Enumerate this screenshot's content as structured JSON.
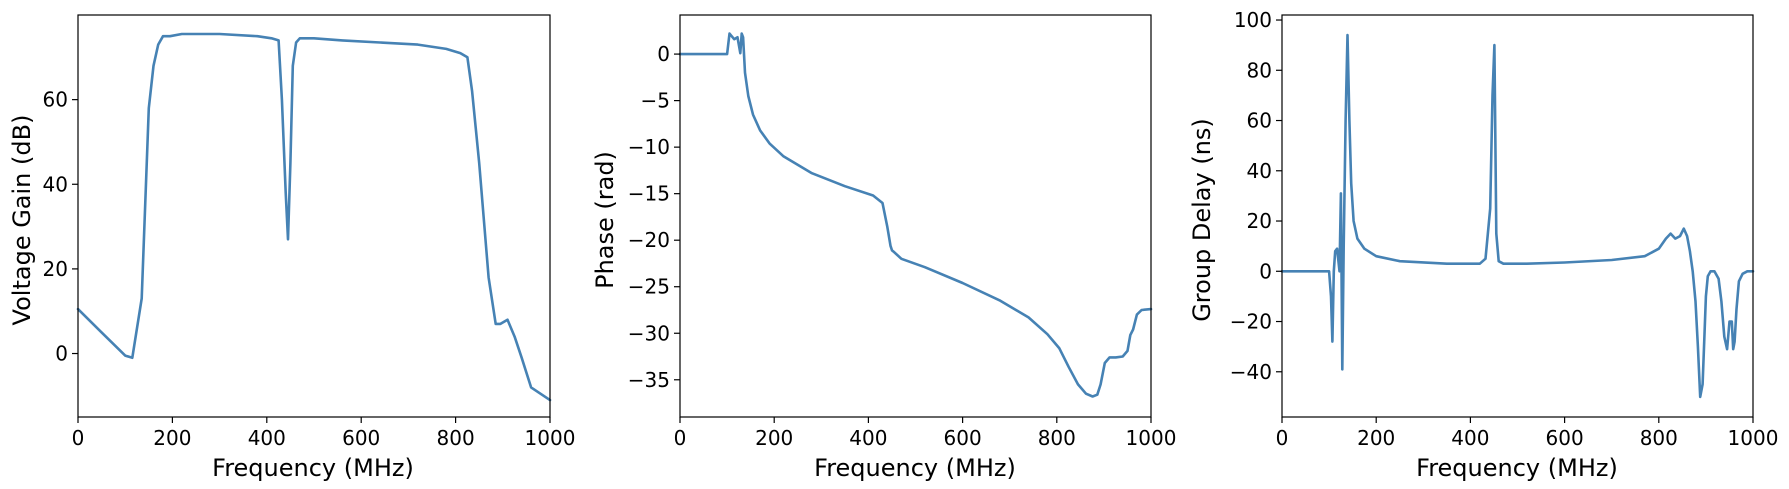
{
  "style": {
    "line_color": "#4682b4",
    "axes_color": "#000000",
    "background": "#ffffff"
  },
  "chart_data": [
    {
      "type": "line",
      "xlabel": "Frequency (MHz)",
      "ylabel": "Voltage Gain (dB)",
      "xlim": [
        0,
        1000
      ],
      "ylim": [
        -15,
        80
      ],
      "xticks": [
        0,
        200,
        400,
        600,
        800,
        1000
      ],
      "yticks": [
        0,
        20,
        40,
        60
      ],
      "grid": false,
      "series": [
        {
          "x": [
            0,
            50,
            100,
            115,
            135,
            150,
            160,
            170,
            180,
            195,
            220,
            300,
            380,
            410,
            425,
            432,
            440,
            445,
            450,
            455,
            462,
            470,
            500,
            560,
            640,
            720,
            780,
            810,
            825,
            835,
            850,
            870,
            885,
            895,
            910,
            925,
            940,
            960,
            1000
          ],
          "y": [
            10.5,
            5,
            -0.5,
            -1,
            13,
            58,
            68,
            73,
            75,
            75,
            75.5,
            75.5,
            75,
            74.5,
            74,
            60,
            38,
            27,
            45,
            68,
            73.5,
            74.5,
            74.5,
            74,
            73.5,
            73,
            72,
            71,
            70,
            62,
            45,
            18,
            7,
            7,
            8,
            4,
            -1,
            -8,
            -11
          ]
        }
      ]
    },
    {
      "type": "line",
      "xlabel": "Frequency (MHz)",
      "ylabel": "Phase (rad)",
      "xlim": [
        0,
        1000
      ],
      "ylim": [
        -39,
        4.2
      ],
      "xticks": [
        0,
        200,
        400,
        600,
        800,
        1000
      ],
      "yticks": [
        0,
        -5,
        -10,
        -15,
        -20,
        -25,
        -30,
        -35
      ],
      "grid": false,
      "series": [
        {
          "x": [
            0,
            100,
            105,
            115,
            122,
            128,
            131,
            134,
            138,
            145,
            155,
            170,
            190,
            220,
            280,
            350,
            410,
            430,
            440,
            447,
            450,
            455,
            470,
            520,
            600,
            680,
            740,
            780,
            805,
            825,
            845,
            862,
            876,
            886,
            893,
            902,
            912,
            925,
            940,
            950,
            956,
            962,
            970,
            980,
            1000
          ],
          "y": [
            0,
            0,
            2.2,
            1.6,
            1.8,
            0.1,
            2.2,
            1.8,
            -2,
            -4.5,
            -6.5,
            -8.2,
            -9.6,
            -11,
            -12.8,
            -14.2,
            -15.2,
            -16,
            -18.5,
            -20.6,
            -21.1,
            -21.3,
            -22,
            -22.9,
            -24.6,
            -26.5,
            -28.3,
            -30.1,
            -31.6,
            -33.6,
            -35.5,
            -36.5,
            -36.8,
            -36.6,
            -35.5,
            -33.2,
            -32.6,
            -32.6,
            -32.5,
            -31.9,
            -30.2,
            -29.6,
            -28,
            -27.5,
            -27.4
          ]
        }
      ]
    },
    {
      "type": "line",
      "xlabel": "Frequency (MHz)",
      "ylabel": "Group Delay (ns)",
      "xlim": [
        0,
        1000
      ],
      "ylim": [
        -58,
        102
      ],
      "xticks": [
        0,
        200,
        400,
        600,
        800,
        1000
      ],
      "yticks": [
        -40,
        -20,
        0,
        20,
        40,
        60,
        80,
        100
      ],
      "grid": false,
      "series": [
        {
          "x": [
            0,
            100,
            104,
            107,
            110,
            113,
            117,
            122,
            125,
            128,
            131,
            135,
            139,
            143,
            147,
            152,
            160,
            175,
            200,
            250,
            350,
            420,
            432,
            442,
            447,
            451,
            455,
            460,
            470,
            520,
            600,
            700,
            770,
            800,
            815,
            825,
            835,
            845,
            853,
            860,
            866,
            872,
            878,
            883,
            888,
            893,
            897,
            900,
            904,
            910,
            918,
            927,
            933,
            939,
            945,
            950,
            955,
            958,
            961,
            965,
            970,
            978,
            988,
            1000
          ],
          "y": [
            0,
            0,
            -10,
            -28,
            0,
            8,
            9,
            0,
            31,
            -39,
            10,
            60,
            94,
            60,
            35,
            20,
            13,
            9,
            6,
            4,
            3,
            3,
            5,
            25,
            70,
            90,
            15,
            4,
            3,
            3,
            3.5,
            4.5,
            6,
            9,
            13,
            15,
            13,
            14,
            17,
            14,
            8,
            0,
            -12,
            -30,
            -50,
            -45,
            -25,
            -10,
            -2,
            0,
            0,
            -3,
            -12,
            -26,
            -31,
            -20,
            -20,
            -31,
            -28,
            -15,
            -4,
            -1,
            0,
            0
          ]
        }
      ]
    }
  ]
}
